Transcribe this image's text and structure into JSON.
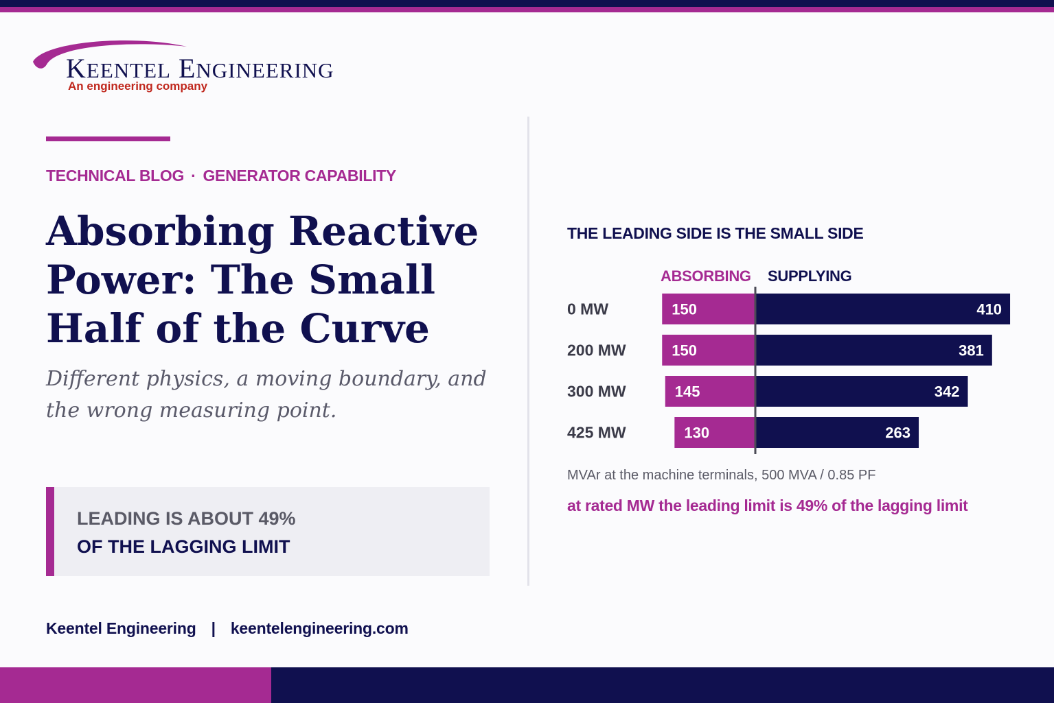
{
  "brand": {
    "logo_text": "Keentel Engineering",
    "tagline": "An engineering company"
  },
  "kicker": {
    "category": "TECHNICAL BLOG",
    "separator": "·",
    "topic": "GENERATOR CAPABILITY"
  },
  "headline": "Absorbing Reactive Power: The Small Half of the Curve",
  "subheadline": "Different physics, a moving boundary, and the wrong measuring point.",
  "callout": {
    "line1": "LEADING IS ABOUT 49%",
    "line2": "OF THE LAGGING LIMIT"
  },
  "chart_data": {
    "type": "bar",
    "orientation": "horizontal-diverging",
    "title": "THE LEADING SIDE IS THE SMALL SIDE",
    "categories": [
      "0 MW",
      "200 MW",
      "300 MW",
      "425 MW"
    ],
    "series": [
      {
        "name": "ABSORBING",
        "values": [
          150,
          150,
          145,
          130
        ],
        "color": "#a52a92",
        "direction": "left"
      },
      {
        "name": "SUPPLYING",
        "values": [
          410,
          381,
          342,
          263
        ],
        "color": "#10104f",
        "direction": "right"
      }
    ],
    "note": "MVAr at the machine terminals, 500 MVA / 0.85 PF",
    "insight": "at rated MW the leading limit is 49% of the lagging limit"
  },
  "footer": {
    "company": "Keentel Engineering",
    "separator": "|",
    "website": "keentelengineering.com"
  },
  "colors": {
    "navy": "#10104f",
    "magenta": "#a52a92",
    "tagline_red": "#c0281e"
  }
}
